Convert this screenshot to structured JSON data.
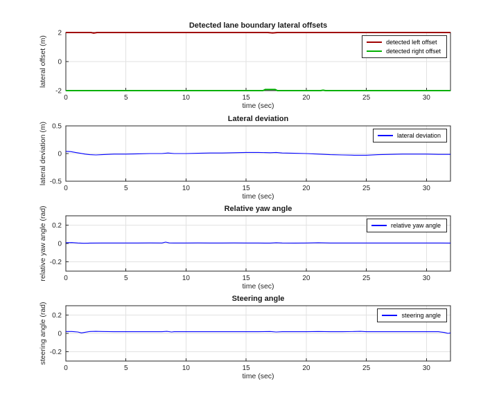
{
  "chart_data": [
    {
      "type": "line",
      "title": "Detected lane boundary lateral offsets",
      "xlabel": "time (sec)",
      "ylabel": "lateral offset (m)",
      "xlim": [
        0,
        32
      ],
      "ylim": [
        -2,
        2
      ],
      "xticks": [
        0,
        5,
        10,
        15,
        20,
        25,
        30
      ],
      "yticks": [
        -2,
        0,
        2
      ],
      "grid": true,
      "legend_position": "top-right",
      "series": [
        {
          "name": "detected left offset",
          "color": "#a00000",
          "x": [
            0,
            2.1,
            2.3,
            2.6,
            16.8,
            17.2,
            17.6,
            32
          ],
          "y": [
            2,
            2,
            1.96,
            2,
            2,
            1.97,
            2,
            2
          ]
        },
        {
          "name": "detected right offset",
          "color": "#00b000",
          "x": [
            0,
            16.4,
            16.6,
            17.4,
            17.6,
            21.2,
            21.4,
            21.6,
            32
          ],
          "y": [
            -2,
            -2,
            -1.92,
            -1.92,
            -2,
            -2,
            -1.97,
            -2,
            -2
          ]
        }
      ]
    },
    {
      "type": "line",
      "title": "Lateral deviation",
      "xlabel": "time (sec)",
      "ylabel": "lateral deviation (m)",
      "xlim": [
        0,
        32
      ],
      "ylim": [
        -0.5,
        0.5
      ],
      "xticks": [
        0,
        5,
        10,
        15,
        20,
        25,
        30
      ],
      "yticks": [
        -0.5,
        0,
        0.5
      ],
      "grid": true,
      "legend_position": "top-right",
      "series": [
        {
          "name": "lateral deviation",
          "color": "#0000ff",
          "x": [
            0,
            0.4,
            0.8,
            1.2,
            1.6,
            2,
            2.5,
            3,
            3.5,
            4,
            5,
            6,
            7,
            8,
            8.5,
            9,
            10,
            11,
            12,
            13,
            14,
            15,
            16,
            17,
            17.5,
            18,
            19,
            20,
            21,
            22,
            23,
            24,
            25,
            26,
            27,
            28,
            29,
            30,
            31,
            32
          ],
          "y": [
            0.04,
            0.035,
            0.02,
            0.005,
            -0.01,
            -0.02,
            -0.025,
            -0.02,
            -0.015,
            -0.01,
            -0.01,
            -0.005,
            0,
            0,
            0.01,
            0,
            0,
            0.005,
            0.01,
            0.01,
            0.015,
            0.02,
            0.02,
            0.015,
            0.02,
            0.01,
            0.005,
            0,
            -0.01,
            -0.02,
            -0.025,
            -0.03,
            -0.03,
            -0.02,
            -0.015,
            -0.01,
            -0.01,
            -0.01,
            -0.015,
            -0.015
          ]
        }
      ]
    },
    {
      "type": "line",
      "title": "Relative yaw angle",
      "xlabel": "time (sec)",
      "ylabel": "relative yaw angle (rad)",
      "xlim": [
        0,
        32
      ],
      "ylim": [
        -0.3,
        0.3
      ],
      "xticks": [
        0,
        5,
        10,
        15,
        20,
        25,
        30
      ],
      "yticks": [
        -0.2,
        0,
        0.2
      ],
      "grid": true,
      "legend_position": "top-right",
      "series": [
        {
          "name": "relative yaw angle",
          "color": "#0000ff",
          "x": [
            0,
            0.5,
            1,
            1.5,
            2,
            3,
            4,
            5,
            6,
            7,
            8,
            8.3,
            8.6,
            9,
            10,
            11,
            12,
            13,
            14,
            15,
            16,
            17,
            17.5,
            18,
            19,
            20,
            21,
            22,
            23,
            24,
            25,
            26,
            27,
            28,
            29,
            30,
            31,
            32
          ],
          "y": [
            0.008,
            0.01,
            0.005,
            0.002,
            0.004,
            0.005,
            0.005,
            0.005,
            0.005,
            0.006,
            0.005,
            0.015,
            0.006,
            0.005,
            0.005,
            0.006,
            0.005,
            0.005,
            0.006,
            0.005,
            0.005,
            0.004,
            0.008,
            0.005,
            0.004,
            0.005,
            0.008,
            0.005,
            0.005,
            0.005,
            0.005,
            0.005,
            0.005,
            0.005,
            0.005,
            0.005,
            0.005,
            0.004
          ]
        }
      ]
    },
    {
      "type": "line",
      "title": "Steering angle",
      "xlabel": "time (sec)",
      "ylabel": "steering angle (rad)",
      "xlim": [
        0,
        32
      ],
      "ylim": [
        -0.3,
        0.3
      ],
      "xticks": [
        0,
        5,
        10,
        15,
        20,
        25,
        30
      ],
      "yticks": [
        -0.2,
        0,
        0.2
      ],
      "grid": true,
      "legend_position": "top-right",
      "series": [
        {
          "name": "steering angle",
          "color": "#0000ff",
          "x": [
            0,
            0.5,
            1,
            1.3,
            1.6,
            2,
            2.5,
            3,
            4,
            5,
            6,
            7,
            8,
            8.4,
            8.8,
            9,
            10,
            12,
            14,
            16,
            17,
            17.5,
            18,
            20,
            21,
            22,
            23,
            24,
            24.5,
            25,
            26,
            28,
            30,
            31,
            31.5,
            31.8,
            32
          ],
          "y": [
            0.02,
            0.02,
            0.015,
            0.005,
            0.012,
            0.02,
            0.022,
            0.02,
            0.018,
            0.018,
            0.018,
            0.018,
            0.018,
            0.022,
            0.015,
            0.018,
            0.018,
            0.018,
            0.018,
            0.018,
            0.02,
            0.015,
            0.018,
            0.018,
            0.02,
            0.018,
            0.018,
            0.02,
            0.022,
            0.018,
            0.018,
            0.018,
            0.018,
            0.018,
            0.01,
            0,
            0.005
          ]
        }
      ]
    }
  ]
}
